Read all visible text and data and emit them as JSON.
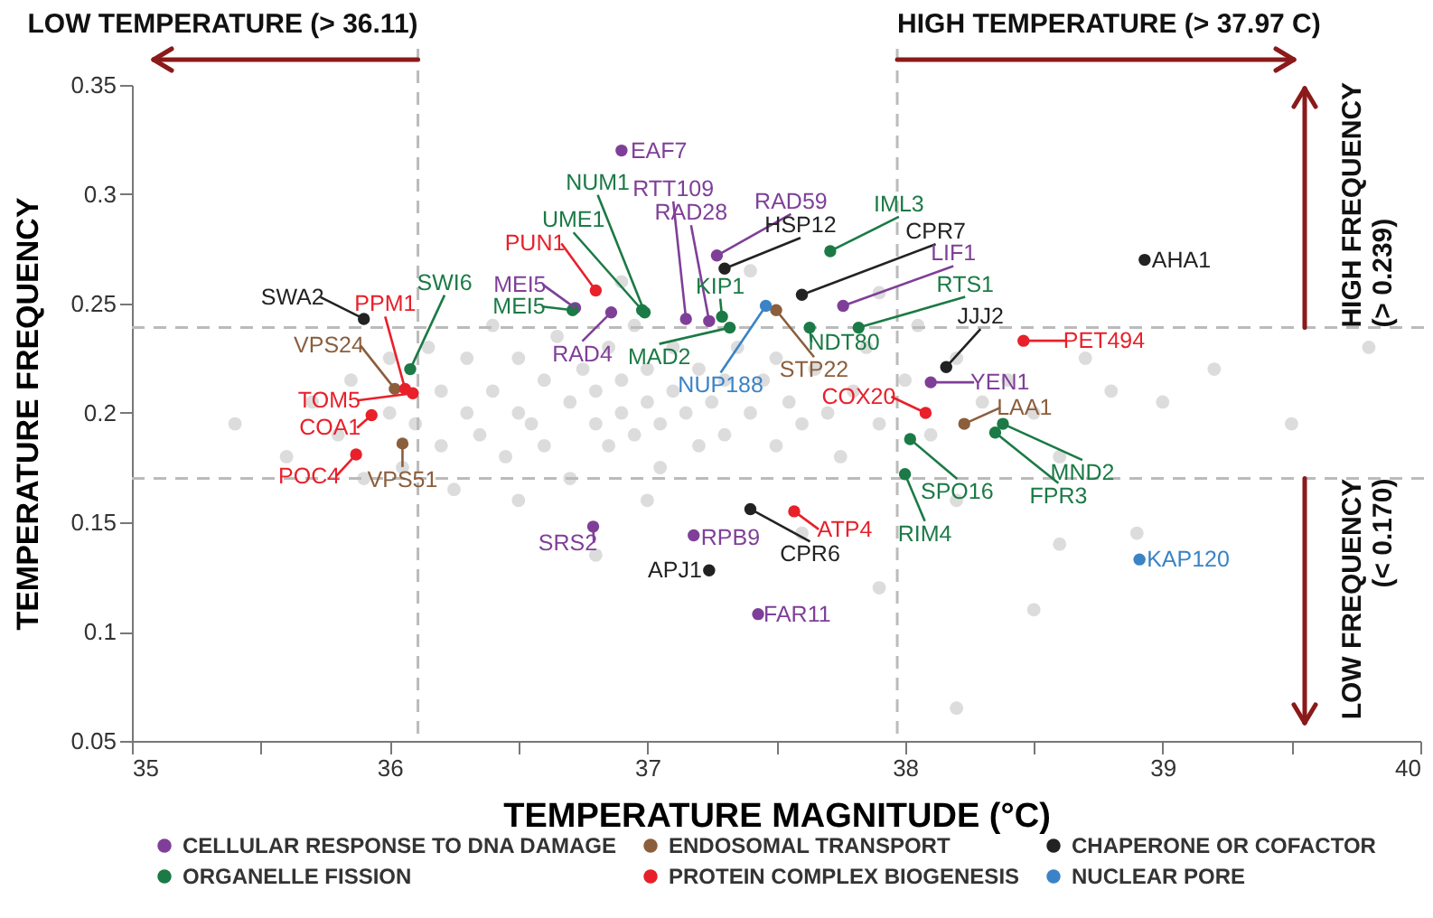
{
  "chart_data": {
    "type": "scatter",
    "xlabel": "TEMPERATURE MAGNITUDE (°C)",
    "ylabel": "TEMPERATURE FREQUENCY",
    "xlim": [
      35,
      40
    ],
    "ylim": [
      0.05,
      0.35
    ],
    "xticks": [
      35,
      {
        "value": 35.5,
        "label": null
      },
      36,
      {
        "value": 36.5,
        "label": null
      },
      37,
      {
        "value": 37.5,
        "label": null
      },
      38,
      {
        "value": 38.5,
        "label": null
      },
      39,
      {
        "value": 39.5,
        "label": null
      },
      40
    ],
    "yticks": [
      0.05,
      0.1,
      0.15,
      0.2,
      0.25,
      0.3,
      0.35
    ],
    "grid": false,
    "legend": "bottom",
    "marker": "circle",
    "series": [
      {
        "color": "#c4c4c4",
        "x": [
          35.4,
          35.6,
          35.7,
          35.8,
          35.85,
          35.9,
          36.0,
          36.0,
          36.05,
          36.1,
          36.15,
          36.2,
          36.2,
          36.25,
          36.3,
          36.3,
          36.35,
          36.4,
          36.4,
          36.45,
          36.5,
          36.5,
          36.55,
          36.6,
          36.6,
          36.65,
          36.7,
          36.7,
          36.75,
          36.8,
          36.8,
          36.85,
          36.85,
          36.9,
          36.9,
          36.95,
          36.95,
          37.0,
          37.0,
          37.05,
          37.05,
          37.1,
          37.1,
          37.15,
          37.2,
          37.2,
          37.25,
          37.3,
          37.3,
          37.35,
          37.4,
          37.45,
          37.5,
          37.5,
          37.55,
          37.6,
          37.65,
          37.7,
          37.75,
          37.8,
          37.85,
          37.9,
          38.0,
          38.05,
          38.1,
          38.2,
          38.3,
          38.4,
          38.5,
          38.6,
          38.7,
          38.8,
          39.0,
          39.2,
          39.5,
          39.8,
          36.9,
          37.4,
          37.9,
          36.5,
          37.0,
          37.6,
          38.2,
          38.6,
          38.9,
          37.9,
          38.2,
          36.8,
          38.5
        ],
        "values": [
          0.195,
          0.18,
          0.205,
          0.19,
          0.215,
          0.17,
          0.225,
          0.2,
          0.175,
          0.195,
          0.23,
          0.21,
          0.185,
          0.165,
          0.2,
          0.225,
          0.19,
          0.24,
          0.21,
          0.18,
          0.2,
          0.225,
          0.195,
          0.215,
          0.185,
          0.235,
          0.205,
          0.17,
          0.22,
          0.195,
          0.21,
          0.185,
          0.23,
          0.2,
          0.215,
          0.19,
          0.24,
          0.205,
          0.22,
          0.175,
          0.195,
          0.21,
          0.23,
          0.2,
          0.185,
          0.22,
          0.205,
          0.215,
          0.19,
          0.23,
          0.2,
          0.215,
          0.185,
          0.225,
          0.205,
          0.195,
          0.22,
          0.2,
          0.18,
          0.21,
          0.23,
          0.195,
          0.215,
          0.24,
          0.19,
          0.225,
          0.205,
          0.215,
          0.2,
          0.18,
          0.225,
          0.21,
          0.205,
          0.22,
          0.195,
          0.23,
          0.26,
          0.265,
          0.255,
          0.16,
          0.16,
          0.145,
          0.16,
          0.14,
          0.145,
          0.12,
          0.065,
          0.135,
          0.11
        ]
      },
      {
        "name": "CELLULAR RESPONSE TO DNA DAMAGE",
        "color": "#7f3f98",
        "x": [
          36.72,
          36.86,
          36.79,
          36.9,
          37.15,
          37.24,
          37.27,
          37.76,
          38.1,
          37.18,
          37.43
        ],
        "values": [
          0.248,
          0.246,
          0.148,
          0.32,
          0.243,
          0.242,
          0.272,
          0.249,
          0.214,
          0.144,
          0.108
        ]
      },
      {
        "name": "ENDOSOMAL TRANSPORT",
        "color": "#8b5e3c",
        "x": [
          36.02,
          36.05,
          37.5,
          38.23
        ],
        "values": [
          0.211,
          0.186,
          0.247,
          0.195
        ]
      },
      {
        "name": "CHAPERONE OR COFACTOR",
        "color": "#222222",
        "x": [
          35.9,
          37.3,
          37.6,
          38.16,
          37.4,
          37.24,
          38.93
        ],
        "values": [
          0.243,
          0.266,
          0.254,
          0.221,
          0.156,
          0.128,
          0.27
        ]
      },
      {
        "name": "ORGANELLE FISSION",
        "color": "#1b7a45",
        "x": [
          36.08,
          36.71,
          36.99,
          36.98,
          37.29,
          37.32,
          37.71,
          37.63,
          37.82,
          38.02,
          38.0,
          38.38,
          38.35
        ],
        "values": [
          0.22,
          0.247,
          0.246,
          0.247,
          0.244,
          0.239,
          0.274,
          0.239,
          0.239,
          0.188,
          0.172,
          0.195,
          0.191
        ]
      },
      {
        "name": "PROTEIN COMPLEX BIOGENESIS",
        "color": "#e8202a",
        "x": [
          36.06,
          36.09,
          35.93,
          35.87,
          36.8,
          38.08,
          37.57,
          38.46
        ],
        "values": [
          0.211,
          0.209,
          0.199,
          0.181,
          0.256,
          0.2,
          0.155,
          0.233
        ]
      },
      {
        "name": "NUCLEAR PORE",
        "color": "#3b83c6",
        "x": [
          37.46,
          38.91
        ],
        "values": [
          0.249,
          0.133
        ]
      }
    ],
    "annotations": [
      {
        "text": "SWA2",
        "x": 35.9,
        "y": 0.243
      },
      {
        "text": "PPM1",
        "x": 36.06,
        "y": 0.211
      },
      {
        "text": "SWI6",
        "x": 36.08,
        "y": 0.22
      },
      {
        "text": "VPS24",
        "x": 36.02,
        "y": 0.211
      },
      {
        "text": "TOM5",
        "x": 36.09,
        "y": 0.209
      },
      {
        "text": "COA1",
        "x": 35.93,
        "y": 0.199
      },
      {
        "text": "POC4",
        "x": 35.87,
        "y": 0.181
      },
      {
        "text": "VPS51",
        "x": 36.05,
        "y": 0.186
      },
      {
        "text": "PUN1",
        "x": 36.8,
        "y": 0.256
      },
      {
        "text": "MEI5",
        "x": 36.72,
        "y": 0.248
      },
      {
        "text": "MEI5",
        "x": 36.71,
        "y": 0.247
      },
      {
        "text": "RAD4",
        "x": 36.86,
        "y": 0.246
      },
      {
        "text": "SRS2",
        "x": 36.79,
        "y": 0.148
      },
      {
        "text": "EAF7",
        "x": 36.9,
        "y": 0.32
      },
      {
        "text": "NUM1",
        "x": 36.99,
        "y": 0.246
      },
      {
        "text": "UME1",
        "x": 36.98,
        "y": 0.247
      },
      {
        "text": "RTT109",
        "x": 37.15,
        "y": 0.243
      },
      {
        "text": "RAD28",
        "x": 37.24,
        "y": 0.242
      },
      {
        "text": "RAD59",
        "x": 37.27,
        "y": 0.272
      },
      {
        "text": "HSP12",
        "x": 37.3,
        "y": 0.266
      },
      {
        "text": "KIP1",
        "x": 37.29,
        "y": 0.244
      },
      {
        "text": "MAD2",
        "x": 37.32,
        "y": 0.239
      },
      {
        "text": "NUP188",
        "x": 37.46,
        "y": 0.249
      },
      {
        "text": "STP22",
        "x": 37.5,
        "y": 0.247
      },
      {
        "text": "IML3",
        "x": 37.71,
        "y": 0.274
      },
      {
        "text": "CPR7",
        "x": 37.6,
        "y": 0.254
      },
      {
        "text": "LIF1",
        "x": 37.76,
        "y": 0.249
      },
      {
        "text": "RTS1",
        "x": 37.82,
        "y": 0.239
      },
      {
        "text": "NDT80",
        "x": 37.63,
        "y": 0.239
      },
      {
        "text": "JJJ2",
        "x": 38.16,
        "y": 0.221
      },
      {
        "text": "COX20",
        "x": 38.08,
        "y": 0.2
      },
      {
        "text": "SPO16",
        "x": 38.02,
        "y": 0.188
      },
      {
        "text": "RIM4",
        "x": 38.0,
        "y": 0.172
      },
      {
        "text": "CPR6",
        "x": 37.4,
        "y": 0.156
      },
      {
        "text": "ATP4",
        "x": 37.57,
        "y": 0.155
      },
      {
        "text": "RPB9",
        "x": 37.18,
        "y": 0.144
      },
      {
        "text": "APJ1",
        "x": 37.24,
        "y": 0.128
      },
      {
        "text": "FAR11",
        "x": 37.43,
        "y": 0.108
      },
      {
        "text": "AHA1",
        "x": 38.93,
        "y": 0.27
      },
      {
        "text": "PET494",
        "x": 38.46,
        "y": 0.233
      },
      {
        "text": "YEN1",
        "x": 38.1,
        "y": 0.214
      },
      {
        "text": "LAA1",
        "x": 38.23,
        "y": 0.195
      },
      {
        "text": "MND2",
        "x": 38.38,
        "y": 0.195
      },
      {
        "text": "FPR3",
        "x": 38.35,
        "y": 0.191
      },
      {
        "text": "KAP120",
        "x": 38.91,
        "y": 0.133
      }
    ],
    "ref_lines": [
      {
        "axis": "x",
        "value": 36.11,
        "label": "LOW TEMPERATURE (> 36.11)",
        "color": "#bbbbbb",
        "line_style": "dashed"
      },
      {
        "axis": "x",
        "value": 37.97,
        "label": "HIGH TEMPERATURE (> 37.97 C)",
        "color": "#bbbbbb",
        "line_style": "dashed"
      },
      {
        "axis": "y",
        "value": 0.239,
        "label": "HIGH FREQUENCY\n(> 0.239)",
        "color": "#bbbbbb",
        "line_style": "dashed"
      },
      {
        "axis": "y",
        "value": 0.17,
        "label": "LOW FREQUENCY\n(< 0.170)",
        "color": "#bbbbbb",
        "line_style": "dashed"
      }
    ]
  }
}
